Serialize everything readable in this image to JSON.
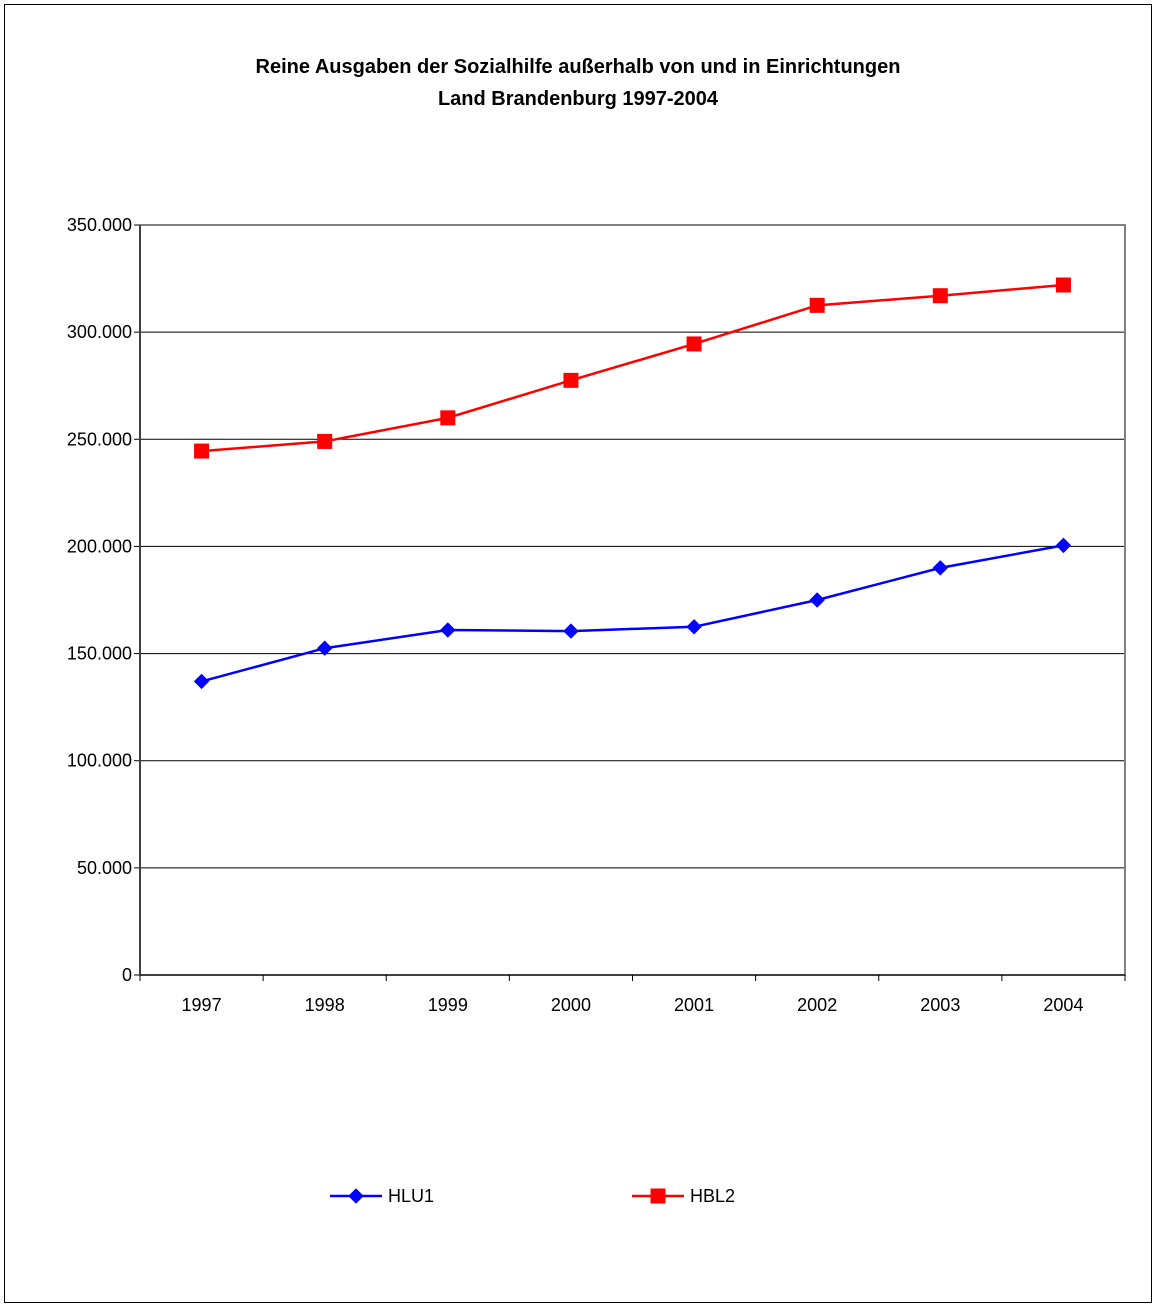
{
  "chart_data": {
    "type": "line",
    "title_line1": "Reine Ausgaben der Sozialhilfe außerhalb von und in Einrichtungen",
    "title_line2": "Land Brandenburg 1997-2004",
    "categories": [
      "1997",
      "1998",
      "1999",
      "2000",
      "2001",
      "2002",
      "2003",
      "2004"
    ],
    "ylim": [
      0,
      350000
    ],
    "yticks": [
      0,
      50000,
      100000,
      150000,
      200000,
      250000,
      300000,
      350000
    ],
    "ytick_labels": [
      "0",
      "50.000",
      "100.000",
      "150.000",
      "200.000",
      "250.000",
      "300.000",
      "350.000"
    ],
    "grid": true,
    "legend_position": "bottom",
    "series": [
      {
        "name": "HLU1",
        "color": "#0000ff",
        "marker": "diamond",
        "values": [
          137000,
          152500,
          161000,
          160500,
          162500,
          175000,
          190000,
          200500
        ]
      },
      {
        "name": "HBL2",
        "color": "#ff0000",
        "marker": "square",
        "values": [
          244500,
          249000,
          260000,
          277500,
          294500,
          312500,
          317000,
          322000
        ]
      }
    ]
  }
}
